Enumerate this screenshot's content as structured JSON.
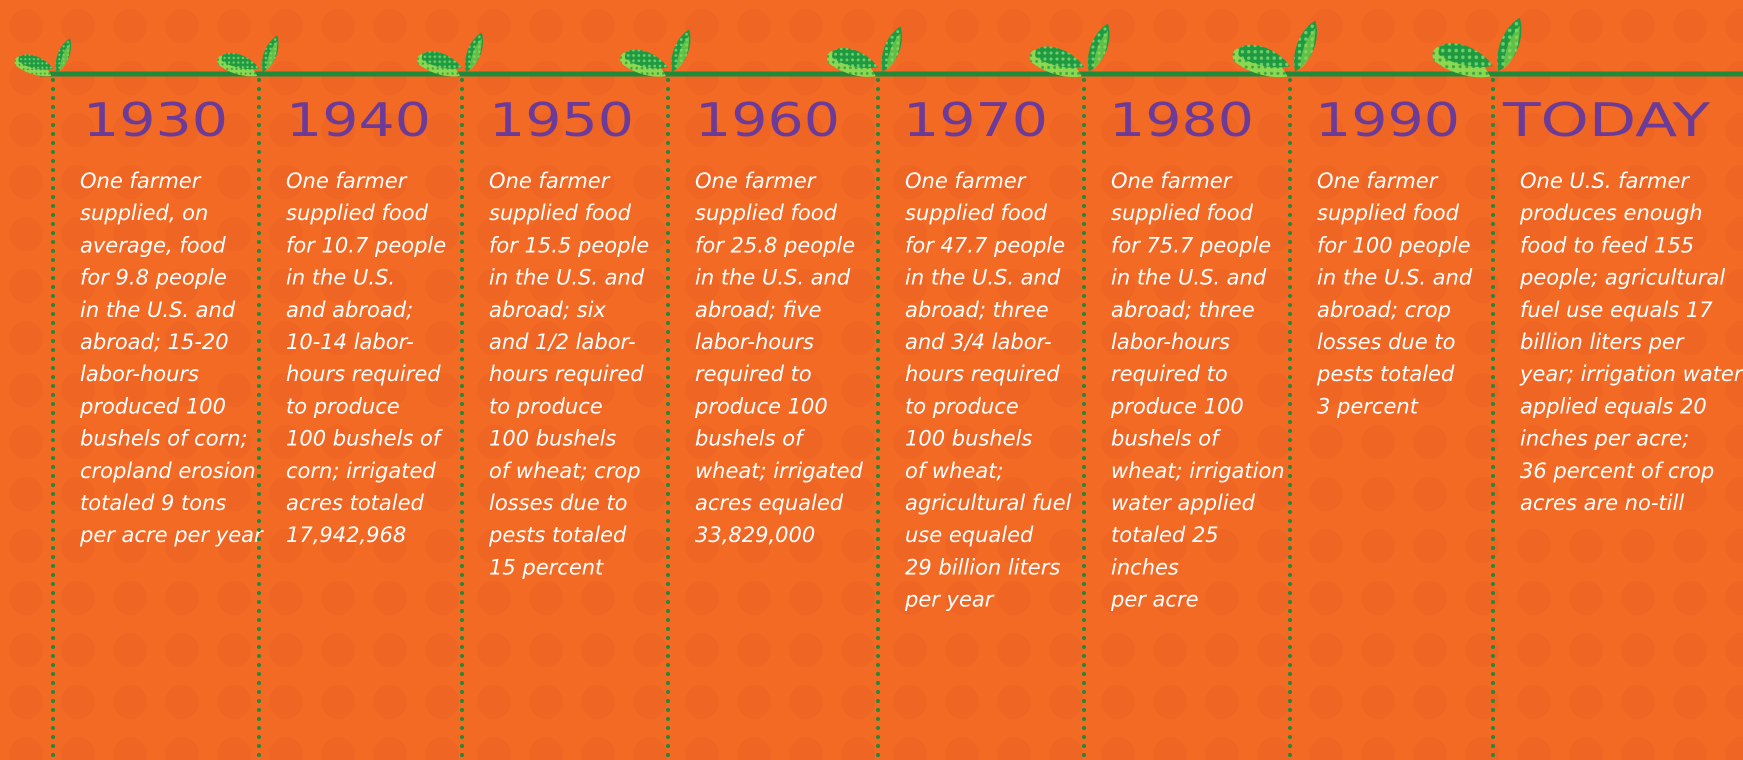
{
  "columns": [
    {
      "year": "1930",
      "lines": [
        "One farmer",
        "supplied, on",
        "average, food",
        "for 9.8 people",
        "in the U.S. and",
        "abroad; 15-20",
        "labor-hours",
        "produced 100",
        "bushels of corn;",
        "cropland erosion",
        "totaled 9 tons",
        "per acre per year"
      ]
    },
    {
      "year": "1940",
      "lines": [
        "One farmer",
        "supplied food",
        "for 10.7 people",
        "in the U.S.",
        "and abroad;",
        "10-14 labor-",
        "hours required",
        "to produce",
        "100 bushels of",
        "corn; irrigated",
        "acres totaled",
        "17,942,968"
      ]
    },
    {
      "year": "1950",
      "lines": [
        "One farmer",
        "supplied food",
        "for 15.5 people",
        "in the U.S. and",
        "abroad; six",
        "and 1/2 labor-",
        "hours required",
        "to produce",
        "100 bushels",
        "of wheat; crop",
        "losses due to",
        "pests totaled",
        "15 percent"
      ]
    },
    {
      "year": "1960",
      "lines": [
        "One farmer",
        "supplied food",
        "for 25.8 people",
        "in the U.S. and",
        "abroad; five",
        "labor-hours",
        "required to",
        "produce 100",
        "bushels of",
        "wheat; irrigated",
        "acres equaled",
        "33,829,000"
      ]
    },
    {
      "year": "1970",
      "lines": [
        "One farmer",
        "supplied food",
        "for 47.7 people",
        "in the U.S. and",
        "abroad; three",
        "and 3/4 labor-",
        "hours required",
        "to produce",
        "100 bushels",
        "of wheat;",
        "agricultural fuel",
        "use equaled",
        "29 billion liters",
        "per year"
      ]
    },
    {
      "year": "1980",
      "lines": [
        "One farmer",
        "supplied food",
        "for 75.7 people",
        "in the U.S. and",
        "abroad; three",
        "labor-hours",
        "required to",
        "produce 100",
        "bushels of",
        "wheat; irrigation",
        "water applied",
        "totaled 25",
        "inches",
        "per acre"
      ]
    },
    {
      "year": "1990",
      "lines": [
        "One farmer",
        "supplied food",
        "for 100 people",
        "in the U.S. and",
        "abroad; crop",
        "losses due to",
        "pests totaled",
        "3 percent"
      ]
    },
    {
      "year": "TODAY",
      "lines": [
        "One U.S. farmer",
        "produces enough",
        "food to feed 155",
        "people; agricultural",
        "fuel use equals 17",
        "billion liters per",
        "year; irrigation water",
        "applied equals 20",
        "inches per acre;",
        "36 percent of crop",
        "acres are no-till"
      ]
    }
  ]
}
